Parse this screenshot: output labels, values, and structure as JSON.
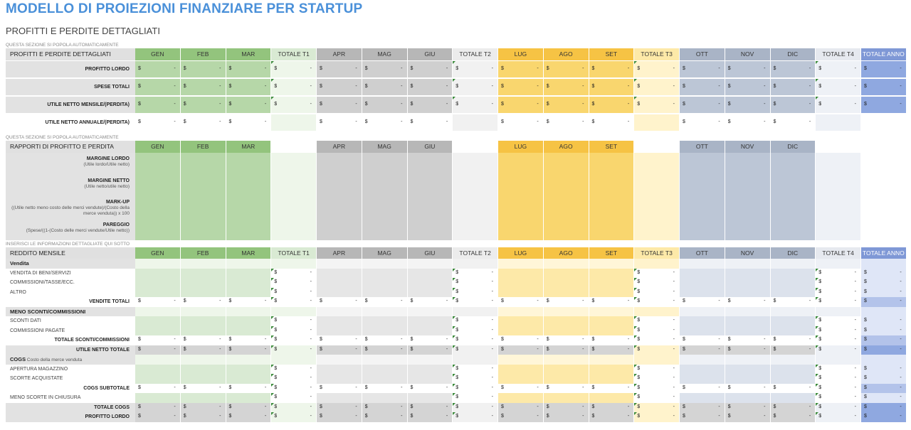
{
  "title": "MODELLO DI PROIEZIONI FINANZIARE PER STARTUP",
  "subtitle": "PROFITTI E PERDITE DETTAGLIATI",
  "notes": {
    "auto1": "QUESTA SEZIONE SI POPOLA AUTOMATICAMENTE",
    "auto2": "QUESTA SEZIONE SI POPOLA AUTOMATICAMENTE",
    "input": "INSERISCI LE INFORMAZIONI DETTAGLIATE QUI SOTTO"
  },
  "currency": "$",
  "dash": "-",
  "columns": [
    "GEN",
    "FEB",
    "MAR",
    "TOTALE T1",
    "APR",
    "MAG",
    "GIU",
    "TOTALE T2",
    "LUG",
    "AGO",
    "SET",
    "TOTALE T3",
    "OTT",
    "NOV",
    "DIC",
    "TOTALE T4",
    "TOTALE ANNO"
  ],
  "ratio_columns": [
    "GEN",
    "FEB",
    "MAR",
    "",
    "APR",
    "MAG",
    "GIU",
    "",
    "LUG",
    "AGO",
    "SET",
    "",
    "OTT",
    "NOV",
    "DIC",
    "",
    ""
  ],
  "colors": {
    "q1": "#93c47d",
    "q1_total": "#d9ead3",
    "q2": "#b7b7b7",
    "q2_total": "#ececec",
    "q3": "#f6c344",
    "q3_total": "#fde9a8",
    "q4": "#a9b4c6",
    "q4_total": "#e6e9ef",
    "year": "#7f98d6",
    "label": "#e2e2e2"
  },
  "section1": {
    "header": "PROFITTI E PERDITE DETTAGLIATI",
    "rows": [
      {
        "label": "PROFITTO LORDO"
      },
      {
        "label": "SPESE TOTALI"
      },
      {
        "label": "UTILE NETTO MENSILE/(PERDITA)"
      },
      {
        "label": "UTILE NETTO ANNUALE/(PERDITA)"
      }
    ]
  },
  "section2": {
    "header": "RAPPORTI DI PROFITTO E PERDITA",
    "rows": [
      {
        "label": "MARGINE LORDO",
        "sub": "(Utile lordo/Utile netto)"
      },
      {
        "label": "MARGINE NETTO",
        "sub": "(Utile netto/utile netto)"
      },
      {
        "label": "MARK-UP",
        "sub": "((Utile netto meno costo delle merci vendute)/(Costo della merce venduta)) x 100"
      },
      {
        "label": "PAREGGIO",
        "sub": "(Spese/((1-(Costo delle merci vendute/Utile netto))"
      }
    ]
  },
  "section3": {
    "header": "REDDITO MENSILE",
    "rows": [
      {
        "type": "group",
        "label": "Vendita"
      },
      {
        "type": "input",
        "label": "VENDITA DI BENI/SERVIZI"
      },
      {
        "type": "input",
        "label": "COMMISSIONI/TASSE/ECC."
      },
      {
        "type": "input",
        "label": "ALTRO"
      },
      {
        "type": "total",
        "label": "VENDITE TOTALI"
      },
      {
        "type": "group",
        "label": "MENO SCONTI/COMMISSIONI"
      },
      {
        "type": "input",
        "label": "SCONTI DATI"
      },
      {
        "type": "input",
        "label": "COMMISSIONI PAGATE"
      },
      {
        "type": "total",
        "label": "TOTALE SCONTI/COMMISSIONI"
      },
      {
        "type": "calc",
        "label": "UTILE NETTO TOTALE"
      },
      {
        "type": "group",
        "label": "COGS",
        "sub": "Costo della merce venduta"
      },
      {
        "type": "input",
        "label": "APERTURA MAGAZZINO"
      },
      {
        "type": "input",
        "label": "SCORTE ACQUISTATE"
      },
      {
        "type": "total",
        "label": "COGS SUBTOTALE"
      },
      {
        "type": "input",
        "label": "MENO SCORTE IN CHIUSURA"
      },
      {
        "type": "calc",
        "label": "TOTALE COGS"
      },
      {
        "type": "calc",
        "label": "PROFITTO LORDO"
      }
    ]
  }
}
